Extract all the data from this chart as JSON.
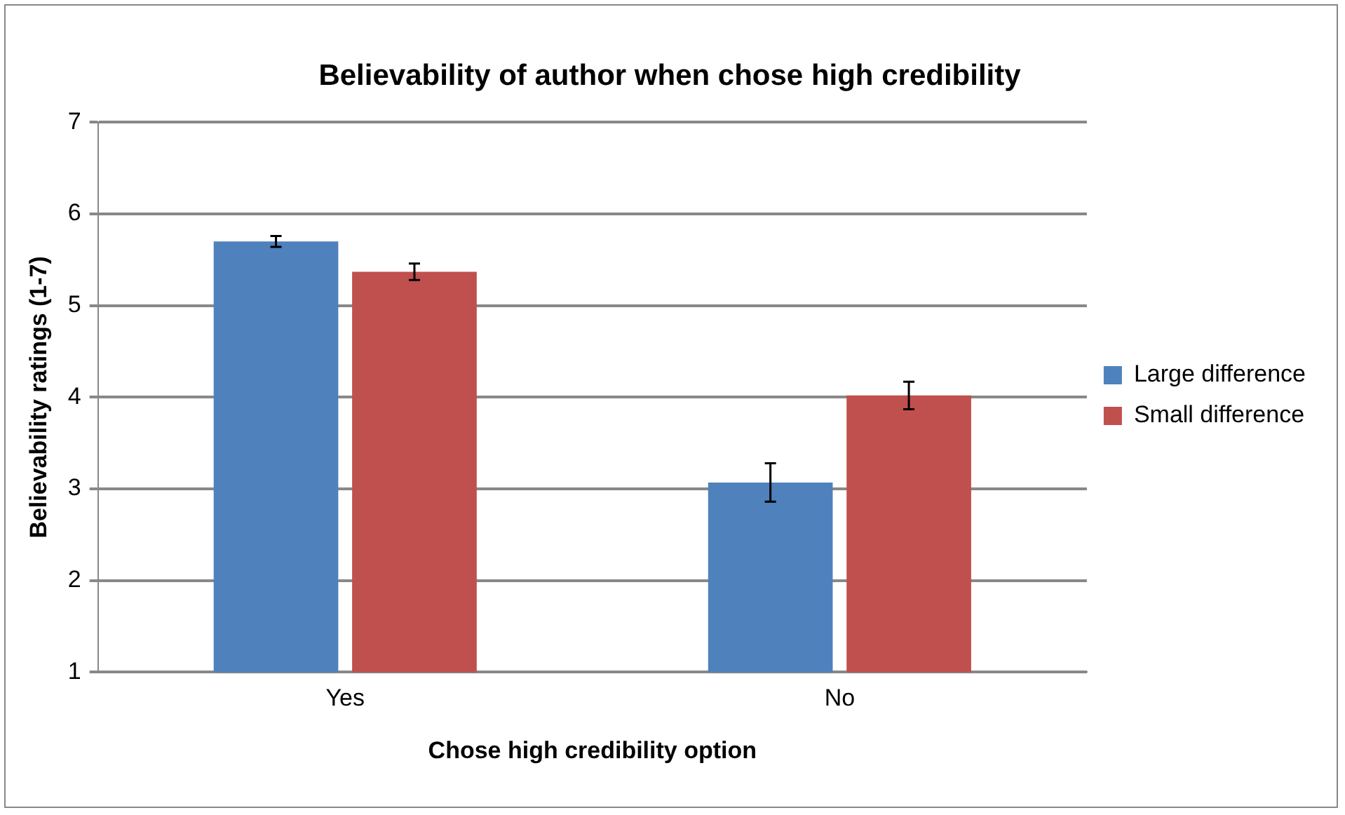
{
  "chart_data": {
    "type": "bar",
    "title": "Believability of author when chose high credibility",
    "xlabel": "Chose high credibility option",
    "ylabel": "Believability ratings (1-7)",
    "categories": [
      "Yes",
      "No"
    ],
    "series": [
      {
        "name": "Large difference",
        "color": "#4f81bd",
        "values": [
          5.7,
          3.07
        ],
        "errors": [
          0.06,
          0.21
        ]
      },
      {
        "name": "Small difference",
        "color": "#c0504d",
        "values": [
          5.37,
          4.02
        ],
        "errors": [
          0.09,
          0.15
        ]
      }
    ],
    "ylim": [
      1,
      7
    ],
    "yticks": [
      1,
      2,
      3,
      4,
      5,
      6,
      7
    ],
    "grid": "y",
    "legend": "right"
  }
}
